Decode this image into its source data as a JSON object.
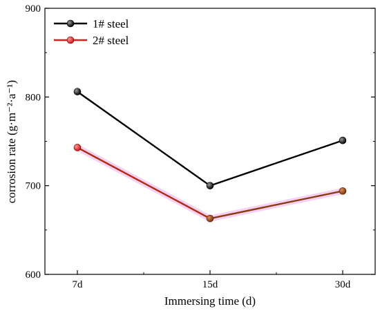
{
  "chart_data": {
    "type": "line",
    "categories": [
      "7d",
      "15d",
      "30d"
    ],
    "series": [
      {
        "name": "1# steel",
        "values": [
          806,
          700,
          751
        ],
        "color": "#000000"
      },
      {
        "name": "2# steel",
        "values": [
          743,
          663,
          694
        ],
        "color": "#e01a1a"
      }
    ],
    "ylim": [
      600,
      900
    ],
    "yticks": [
      600,
      700,
      800,
      900
    ],
    "xlabel": "Immersing time (d)",
    "ylabel": "corrosion rate (g·m⁻²·a⁻¹)",
    "legend_position": "top-left",
    "grid": false
  }
}
